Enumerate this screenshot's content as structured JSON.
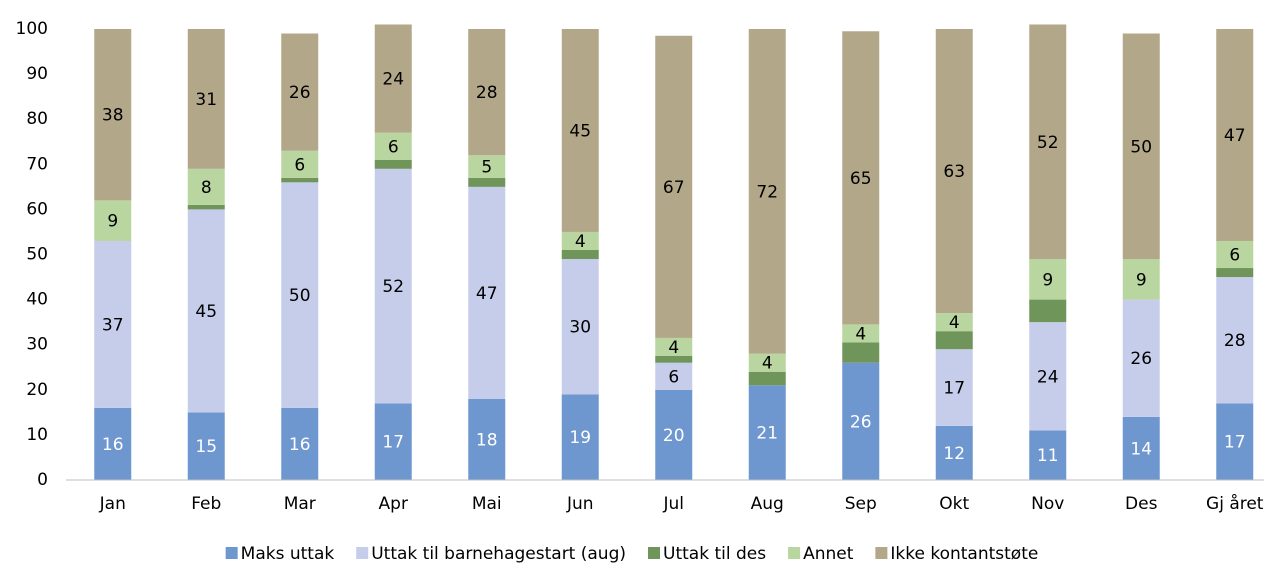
{
  "chart_data": {
    "type": "stacked_bar",
    "categories": [
      "Jan",
      "Feb",
      "Mar",
      "Apr",
      "Mai",
      "Jun",
      "Jul",
      "Aug",
      "Sep",
      "Okt",
      "Nov",
      "Des",
      "Gj året"
    ],
    "series": [
      {
        "name": "Maks uttak",
        "color": "#6f97cf",
        "label_color": "#ffffff",
        "show_labels": true,
        "values": [
          16,
          15,
          16,
          17,
          18,
          19,
          20,
          21,
          26,
          12,
          11,
          14,
          17
        ]
      },
      {
        "name": "Uttak til barnehagestart (aug)",
        "color": "#c5cdea",
        "label_color": "#000000",
        "show_labels": true,
        "values": [
          37,
          45,
          50,
          52,
          47,
          30,
          6,
          0,
          0,
          17,
          24,
          26,
          28
        ]
      },
      {
        "name": "Uttak til des",
        "color": "#70955a",
        "label_color": "#000000",
        "show_labels": false,
        "values": [
          0,
          1,
          1,
          2,
          2,
          2,
          1.5,
          3,
          4.5,
          4,
          5,
          0,
          2
        ]
      },
      {
        "name": "Annet",
        "color": "#b9d5a0",
        "label_color": "#000000",
        "show_labels": true,
        "values": [
          9,
          8,
          6,
          6,
          5,
          4,
          4,
          4,
          4,
          4,
          9,
          9,
          6
        ]
      },
      {
        "name": "Ikke kontantstøte",
        "color": "#b3a78a",
        "label_color": "#000000",
        "show_labels": true,
        "values": [
          38,
          31,
          26,
          24,
          28,
          45,
          67,
          72,
          65,
          63,
          52,
          50,
          47
        ]
      }
    ],
    "ylim": [
      0,
      100
    ],
    "yticks": [
      0,
      10,
      20,
      30,
      40,
      50,
      60,
      70,
      80,
      90,
      100
    ],
    "grid": false,
    "legend": "bottom"
  }
}
